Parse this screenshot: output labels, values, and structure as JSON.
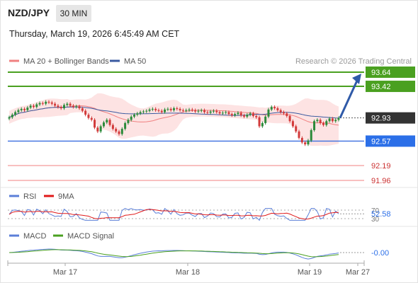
{
  "header": {
    "symbol": "NZD/JPY",
    "timeframe": "30 MIN",
    "datetime": "Thursday, March 19, 2026 6:45:49 AM CET"
  },
  "legend": {
    "ma20": "MA 20 + Bollinger Bands",
    "ma50": "MA 50",
    "credit": "Research © 2026 Trading Central"
  },
  "colors": {
    "candle_up": "#2c8a3a",
    "candle_down": "#d23a3a",
    "ma20": "#f08080",
    "ma50": "#3a5aa0",
    "bollinger_fill": "#fde3e3",
    "target_line": "#4aa020",
    "current_label": "#333333",
    "support_line": "#3b6fe0",
    "support_label": "#2b6fe8",
    "sub_level": "#f08080",
    "arrow": "#2f5aa8",
    "rsi": "#5b7fd8",
    "rsi_ma": "#e01818",
    "macd": "#5b7fd8",
    "macd_signal": "#4aa020"
  },
  "chart_data": [
    {
      "type": "candlestick",
      "x_ticks": [
        "Mar 17",
        "Mar 18",
        "Mar 19",
        "Mar 27"
      ],
      "ylim": [
        91.85,
        93.75
      ],
      "levels": [
        {
          "value": 93.64,
          "label": "93.64",
          "kind": "target"
        },
        {
          "value": 93.42,
          "label": "93.42",
          "kind": "target"
        },
        {
          "value": 92.93,
          "label": "92.93",
          "kind": "current"
        },
        {
          "value": 92.57,
          "label": "92.57",
          "kind": "support"
        },
        {
          "value": 92.19,
          "label": "92.19",
          "kind": "sub"
        },
        {
          "value": 91.96,
          "label": "91.96",
          "kind": "sub"
        }
      ],
      "series": [
        {
          "name": "MA 20 + Bollinger Bands"
        },
        {
          "name": "MA 50"
        }
      ],
      "close": [
        92.94,
        92.98,
        93.02,
        93.05,
        93.07,
        93.05,
        93.09,
        93.12,
        93.1,
        93.14,
        93.16,
        93.15,
        93.18,
        93.17,
        93.15,
        93.12,
        93.1,
        93.08,
        93.13,
        93.15,
        93.12,
        93.1,
        93.11,
        93.08,
        93.04,
        92.98,
        92.93,
        92.9,
        92.78,
        92.72,
        92.8,
        92.86,
        92.9,
        92.82,
        92.76,
        92.72,
        92.68,
        92.76,
        92.85,
        92.9,
        92.95,
        92.98,
        93.0,
        93.02,
        93.03,
        93.04,
        93.06,
        93.07,
        93.05,
        93.04,
        93.02,
        93.06,
        93.07,
        93.05,
        93.08,
        93.07,
        93.05,
        93.04,
        93.05,
        93.06,
        93.05,
        93.03,
        93.04,
        93.05,
        93.02,
        93.01,
        93.03,
        93.04,
        93.02,
        93.0,
        93.01,
        93.02,
        92.99,
        92.97,
        92.99,
        93.01,
        92.97,
        92.95,
        92.98,
        93.0,
        92.96,
        92.94,
        92.8,
        92.85,
        92.95,
        93.06,
        93.1,
        93.08,
        93.05,
        93.02,
        93.0,
        92.96,
        92.88,
        92.8,
        92.72,
        92.62,
        92.55,
        92.52,
        92.58,
        92.74,
        92.88,
        92.9,
        92.85,
        92.82,
        92.88,
        92.92,
        92.88,
        92.9,
        92.93
      ],
      "rsi": {
        "name": "RSI",
        "ma_name": "9MA",
        "value": 52.58,
        "value_label": "52.58",
        "levels": [
          70,
          30
        ]
      },
      "macd": {
        "name": "MACD",
        "signal_name": "MACD Signal",
        "value": -0.0,
        "value_label": "-0.00"
      }
    }
  ]
}
